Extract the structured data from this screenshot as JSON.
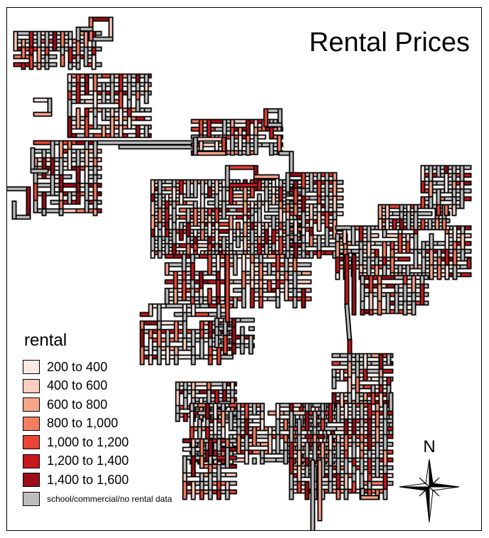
{
  "title": "Rental Prices",
  "legend": {
    "title": "rental",
    "items": [
      {
        "label": "200 to 400",
        "color": "#fde9e4"
      },
      {
        "label": "400 to 600",
        "color": "#fbcdbf"
      },
      {
        "label": "600 to 800",
        "color": "#f9a58a"
      },
      {
        "label": "800 to 1,000",
        "color": "#f57d62"
      },
      {
        "label": "1,000 to 1,200",
        "color": "#ea4337"
      },
      {
        "label": "1,200 to 1,400",
        "color": "#c8171c"
      },
      {
        "label": "1,400 to 1,600",
        "color": "#9c0d17"
      },
      {
        "label": "school/commercial/no rental data",
        "color": "#bdbdbd"
      }
    ]
  },
  "north_label": "N",
  "colors": {
    "street_outline": "#000000",
    "no_data": "#bdbdbd"
  }
}
